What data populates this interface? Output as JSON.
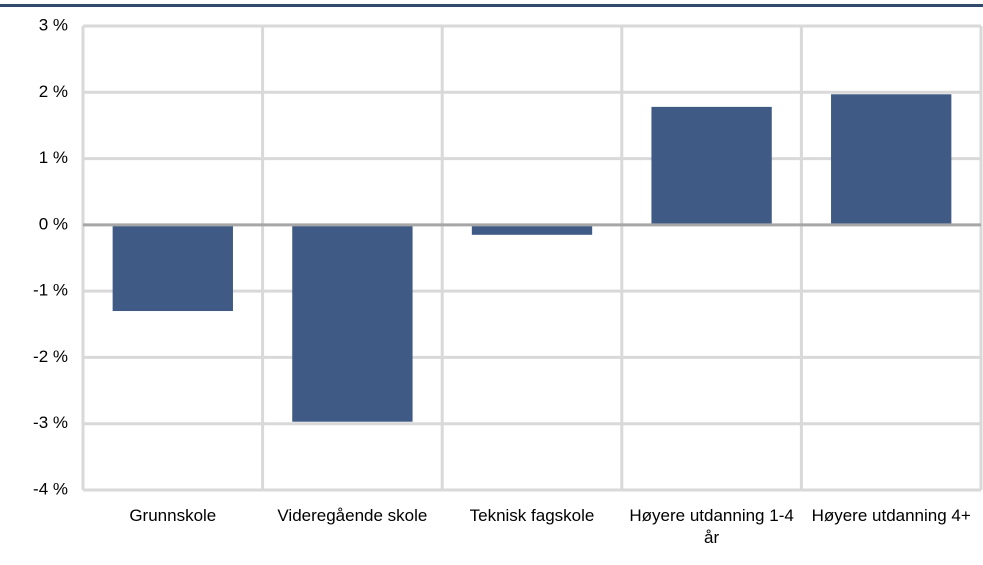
{
  "chart_data": {
    "type": "bar",
    "categories": [
      "Grunnskole",
      "Videregående skole",
      "Teknisk fagskole",
      "Høyere utdanning 1-4 år",
      "Høyere utdanning 4+"
    ],
    "values": [
      -1.3,
      -2.97,
      -0.15,
      1.78,
      1.97
    ],
    "color": "#3f5a84",
    "ylim": [
      -4,
      3
    ],
    "yticks": [
      {
        "value": -4,
        "label": "-4 %"
      },
      {
        "value": -3,
        "label": "-3 %"
      },
      {
        "value": -2,
        "label": "-2 %"
      },
      {
        "value": -1,
        "label": "-1 %"
      },
      {
        "value": 0,
        "label": "0 %"
      },
      {
        "value": 1,
        "label": "1 %"
      },
      {
        "value": 2,
        "label": "2 %"
      },
      {
        "value": 3,
        "label": "3 %"
      }
    ],
    "grid": true
  }
}
